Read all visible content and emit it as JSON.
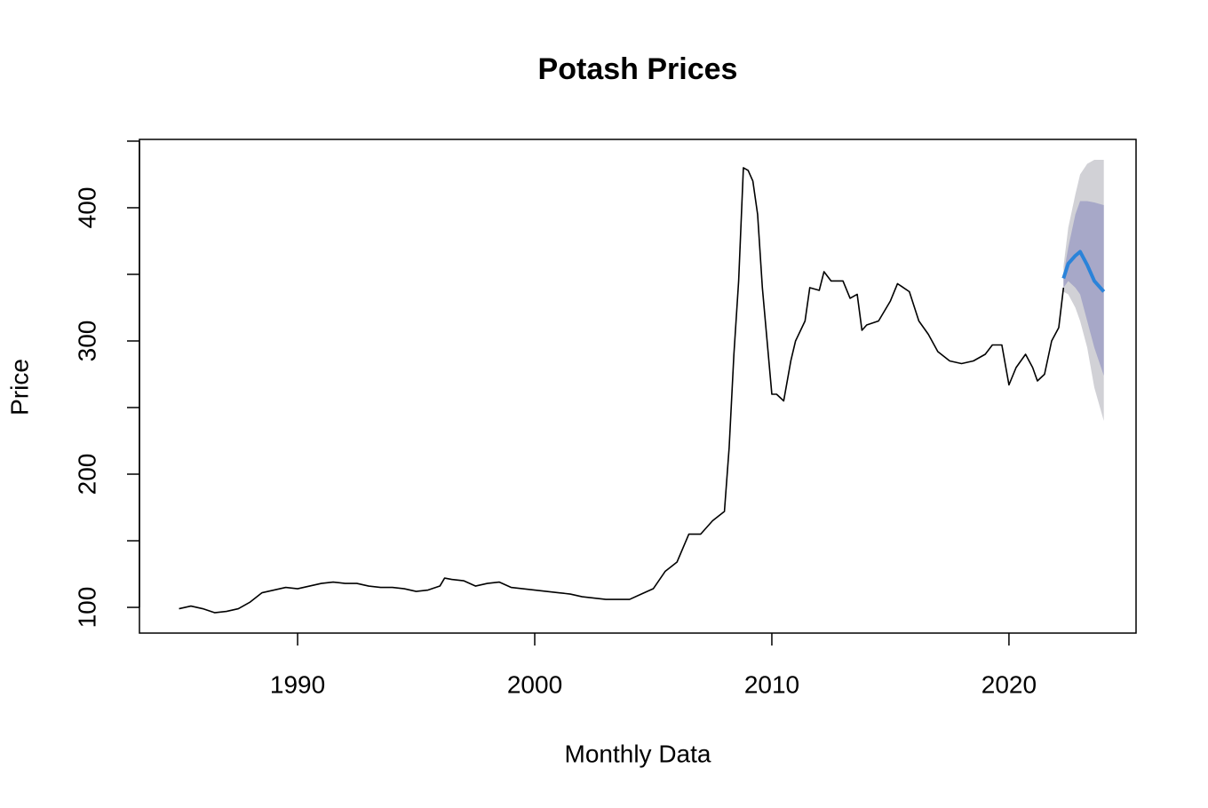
{
  "chart_data": {
    "type": "forecast",
    "title": "Potash Prices",
    "xlabel": "Monthly Data",
    "ylabel": "Price",
    "x": [
      1985.0,
      1985.5,
      1986.0,
      1986.5,
      1987.0,
      1987.5,
      1988.0,
      1988.5,
      1989.0,
      1989.5,
      1990.0,
      1990.5,
      1991.0,
      1991.5,
      1992.0,
      1992.5,
      1993.0,
      1993.5,
      1994.0,
      1994.5,
      1995.0,
      1995.5,
      1996.0,
      1996.2,
      1996.5,
      1997.0,
      1997.5,
      1998.0,
      1998.5,
      1999.0,
      1999.5,
      2000.0,
      2000.5,
      2001.0,
      2001.5,
      2002.0,
      2002.5,
      2003.0,
      2003.5,
      2004.0,
      2004.5,
      2005.0,
      2005.5,
      2006.0,
      2006.5,
      2007.0,
      2007.5,
      2008.0,
      2008.2,
      2008.4,
      2008.6,
      2008.8,
      2009.0,
      2009.2,
      2009.4,
      2009.6,
      2009.8,
      2010.0,
      2010.2,
      2010.5,
      2010.8,
      2011.0,
      2011.4,
      2011.6,
      2012.0,
      2012.2,
      2012.5,
      2013.0,
      2013.3,
      2013.6,
      2013.8,
      2014.0,
      2014.5,
      2015.0,
      2015.3,
      2015.8,
      2016.2,
      2016.6,
      2017.0,
      2017.5,
      2018.0,
      2018.5,
      2019.0,
      2019.3,
      2019.7,
      2020.0,
      2020.3,
      2020.7,
      2021.0,
      2021.2,
      2021.5,
      2021.8,
      2022.1,
      2022.3
    ],
    "values": [
      99,
      101,
      99,
      96,
      97,
      99,
      104,
      111,
      113,
      115,
      114,
      116,
      118,
      119,
      118,
      118,
      116,
      115,
      115,
      114,
      112,
      113,
      116,
      122,
      121,
      120,
      116,
      118,
      119,
      115,
      114,
      113,
      112,
      111,
      110,
      108,
      107,
      106,
      106,
      106,
      110,
      114,
      127,
      134,
      155,
      155,
      165,
      172,
      220,
      290,
      345,
      430,
      428,
      420,
      395,
      340,
      300,
      260,
      260,
      255,
      285,
      300,
      315,
      340,
      338,
      352,
      345,
      345,
      332,
      335,
      308,
      312,
      315,
      330,
      343,
      337,
      315,
      305,
      292,
      285,
      283,
      285,
      290,
      297,
      297,
      267,
      280,
      290,
      280,
      270,
      275,
      300,
      310,
      340
    ],
    "color": "#000000",
    "forecast": {
      "x": [
        2022.3,
        2022.5,
        2022.8,
        2023.0,
        2023.3,
        2023.6,
        2024.0
      ],
      "mean": [
        347,
        358,
        364,
        367,
        357,
        345,
        337
      ],
      "lo80": [
        340,
        345,
        340,
        335,
        315,
        295,
        274
      ],
      "hi80": [
        350,
        370,
        395,
        405,
        405,
        404,
        402
      ],
      "lo95": [
        337,
        335,
        325,
        315,
        295,
        265,
        240
      ],
      "hi95": [
        356,
        385,
        410,
        425,
        433,
        436,
        436
      ],
      "mean_color": "#2b83d9",
      "band80_color": "#a7a8c8",
      "band95_color": "#d1d1d6"
    },
    "xlim": [
      1983.33,
      2025.36
    ],
    "ylim": [
      80.7,
      451.3
    ],
    "xticks": [
      1990,
      2000,
      2010,
      2020
    ],
    "yticks": [
      100,
      200,
      300,
      400
    ],
    "yminor_ticks": [
      150,
      250,
      350,
      450
    ]
  }
}
